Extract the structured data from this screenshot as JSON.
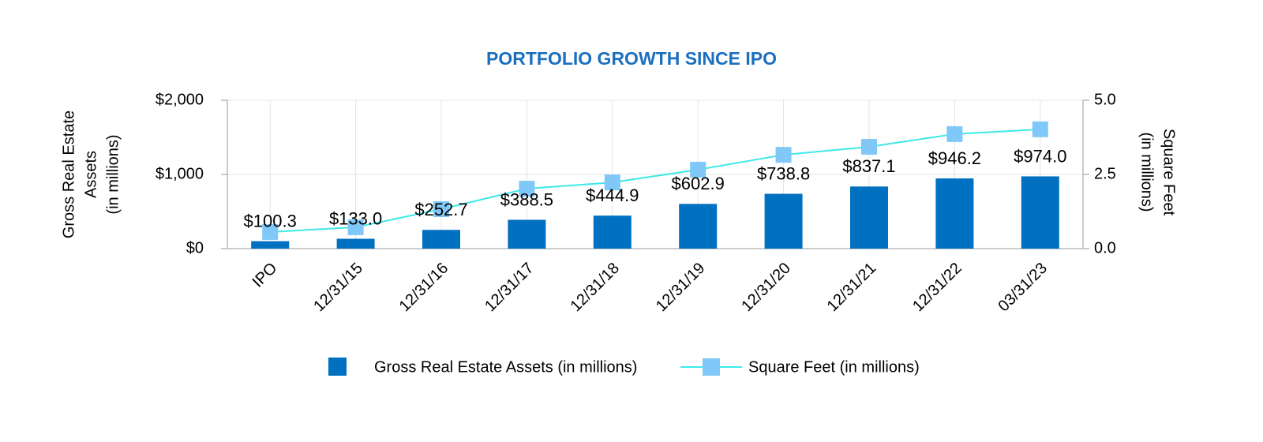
{
  "chart_data": {
    "type": "bar-line",
    "title": "PORTFOLIO GROWTH SINCE IPO",
    "y_label": [
      "Gross Real Estate",
      "Assets",
      "(in millions)"
    ],
    "y2_label": [
      "Square Feet",
      "(in millions)"
    ],
    "categories": [
      "IPO",
      "12/31/15",
      "12/31/16",
      "12/31/17",
      "12/31/18",
      "12/31/19",
      "12/31/20",
      "12/31/21",
      "12/31/22",
      "03/31/23"
    ],
    "series": [
      {
        "name": "Gross Real Estate Assets (in millions)",
        "type": "bar",
        "color": "#0070c0",
        "values": [
          100.3,
          133.0,
          252.7,
          388.5,
          444.9,
          602.9,
          738.8,
          837.1,
          946.2,
          974.0
        ],
        "value_labels": [
          "$100.3",
          "$133.0",
          "$252.7",
          "$388.5",
          "$444.9",
          "$602.9",
          "$738.8",
          "$837.1",
          "$946.2",
          "$974.0"
        ]
      },
      {
        "name": "Square Feet (in millions)",
        "type": "line",
        "axis": "y2",
        "color": "#3ee8e8",
        "marker_color": "#80c8f8",
        "values": [
          0.56,
          0.72,
          1.33,
          2.02,
          2.23,
          2.66,
          3.16,
          3.43,
          3.86,
          4.02
        ]
      }
    ],
    "ylim": [
      0,
      2000
    ],
    "yticks": [
      {
        "value": 0,
        "label": "$0"
      },
      {
        "value": 1000,
        "label": "$1,000"
      },
      {
        "value": 2000,
        "label": "$2,000"
      }
    ],
    "y2lim": [
      0,
      5
    ],
    "y2ticks": [
      {
        "value": 0,
        "label": "0.0"
      },
      {
        "value": 2.5,
        "label": "2.5"
      },
      {
        "value": 5,
        "label": "5.0"
      }
    ],
    "grid": true
  }
}
